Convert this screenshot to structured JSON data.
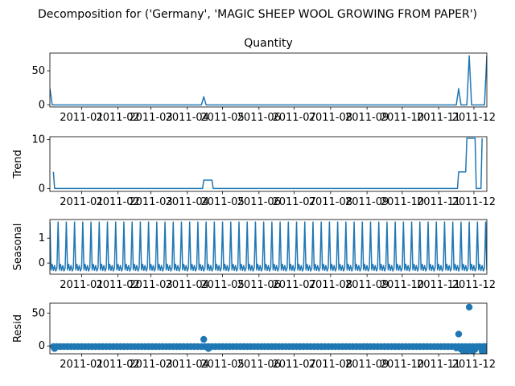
{
  "figure": {
    "suptitle": "Decomposition for ('Germany', 'MAGIC SHEEP WOOL GROWING FROM PAPER')"
  },
  "chart_data": [
    {
      "type": "line",
      "title": "Quantity",
      "ylabel": "",
      "ylim": [
        -3,
        76
      ],
      "yticks": [
        0,
        50
      ],
      "xlim": [
        "2010-12-05",
        "2011-12-12"
      ],
      "xtick_labels": [
        "2011-01",
        "2011-02",
        "2011-03",
        "2011-04",
        "2011-05",
        "2011-06",
        "2011-07",
        "2011-08",
        "2011-09",
        "2011-10",
        "2011-11",
        "2011-12"
      ],
      "color": "#1f77b4",
      "points": [
        [
          "2010-12-05",
          24
        ],
        [
          "2010-12-07",
          0
        ],
        [
          "2011-04-13",
          0
        ],
        [
          "2011-04-15",
          12
        ],
        [
          "2011-04-17",
          0
        ],
        [
          "2011-11-16",
          0
        ],
        [
          "2011-11-18",
          24
        ],
        [
          "2011-11-20",
          0
        ],
        [
          "2011-11-25",
          0
        ],
        [
          "2011-11-27",
          72
        ],
        [
          "2011-11-29",
          0
        ],
        [
          "2011-12-10",
          0
        ],
        [
          "2011-12-12",
          72
        ]
      ]
    },
    {
      "type": "line",
      "title": "",
      "ylabel": "Trend",
      "ylim": [
        -0.6,
        10.6
      ],
      "yticks": [
        0,
        10
      ],
      "xlim": [
        "2010-12-05",
        "2011-12-12"
      ],
      "xtick_labels": [
        "2011-01",
        "2011-02",
        "2011-03",
        "2011-04",
        "2011-05",
        "2011-06",
        "2011-07",
        "2011-08",
        "2011-09",
        "2011-10",
        "2011-11",
        "2011-12"
      ],
      "color": "#1f77b4",
      "points": [
        [
          "2010-12-08",
          3.4
        ],
        [
          "2010-12-09",
          0
        ],
        [
          "2011-04-14",
          0
        ],
        [
          "2011-04-15",
          1.7
        ],
        [
          "2011-04-22",
          1.7
        ],
        [
          "2011-04-23",
          0
        ],
        [
          "2011-11-17",
          0
        ],
        [
          "2011-11-18",
          3.4
        ],
        [
          "2011-11-24",
          3.4
        ],
        [
          "2011-11-25",
          10.3
        ],
        [
          "2011-12-02",
          10.3
        ],
        [
          "2011-12-03",
          0
        ],
        [
          "2011-12-07",
          0
        ],
        [
          "2011-12-08",
          10.3
        ]
      ]
    },
    {
      "type": "line",
      "title": "",
      "ylabel": "Seasonal",
      "ylim": [
        -0.45,
        1.75
      ],
      "yticks": [
        0,
        1
      ],
      "xlim": [
        "2010-12-05",
        "2011-12-12"
      ],
      "xtick_labels": [
        "2011-01",
        "2011-02",
        "2011-03",
        "2011-04",
        "2011-05",
        "2011-06",
        "2011-07",
        "2011-08",
        "2011-09",
        "2011-10",
        "2011-11",
        "2011-12"
      ],
      "color": "#1f77b4",
      "pattern": {
        "period_days": 7,
        "start": "2010-12-05",
        "end": "2011-12-12",
        "weekly_values": [
          1.65,
          -0.28,
          -0.05,
          -0.3,
          -0.1,
          -0.32,
          -0.2
        ]
      }
    },
    {
      "type": "scatter",
      "title": "",
      "ylabel": "Resid",
      "ylim": [
        -12,
        65
      ],
      "yticks": [
        0,
        50
      ],
      "xlim": [
        "2010-12-05",
        "2011-12-12"
      ],
      "xtick_labels": [
        "2011-01",
        "2011-02",
        "2011-03",
        "2011-04",
        "2011-05",
        "2011-06",
        "2011-07",
        "2011-08",
        "2011-09",
        "2011-10",
        "2011-11",
        "2011-12"
      ],
      "color": "#1f77b4",
      "baseline": {
        "start": "2010-12-08",
        "end": "2011-12-12",
        "step_days": 3,
        "value": -1
      },
      "outliers": [
        [
          "2010-12-09",
          -4
        ],
        [
          "2011-04-15",
          10
        ],
        [
          "2011-04-19",
          -4
        ],
        [
          "2011-11-16",
          -3
        ],
        [
          "2011-11-18",
          18
        ],
        [
          "2011-11-20",
          -5
        ],
        [
          "2011-11-22",
          -8
        ],
        [
          "2011-11-25",
          -8
        ],
        [
          "2011-11-27",
          59
        ],
        [
          "2011-11-30",
          -8
        ],
        [
          "2011-12-02",
          -5
        ],
        [
          "2011-12-05",
          -1
        ],
        [
          "2011-12-08",
          -8
        ],
        [
          "2011-12-10",
          -1
        ],
        [
          "2011-12-12",
          -8
        ]
      ]
    }
  ]
}
